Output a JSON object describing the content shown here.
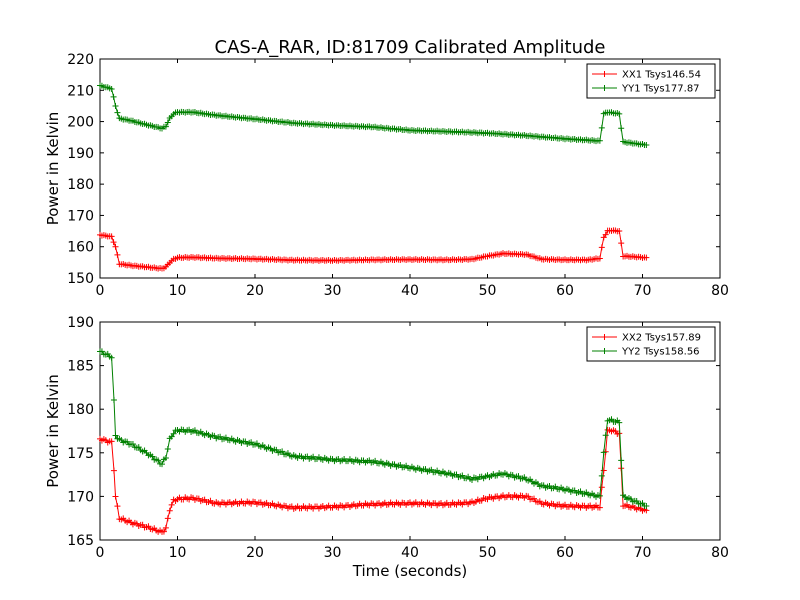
{
  "chart_data": [
    {
      "type": "line",
      "title": "CAS-A_RAR, ID:81709 Calibrated Amplitude",
      "xlabel": "",
      "ylabel": "Power in Kelvin",
      "xlim": [
        0,
        80
      ],
      "ylim": [
        150,
        220
      ],
      "xticks": [
        "0",
        "10",
        "20",
        "30",
        "40",
        "50",
        "60",
        "70",
        "80"
      ],
      "yticks": [
        "150",
        "160",
        "170",
        "180",
        "190",
        "200",
        "210",
        "220"
      ],
      "legend_position": "top-right",
      "marker": "+",
      "series": [
        {
          "name": "XX1 Tsys146.54",
          "color": "#ff0000",
          "x": [
            0.0,
            1.5,
            2.0,
            2.5,
            4.0,
            6.0,
            8.0,
            8.5,
            9.0,
            9.5,
            10.0,
            12.0,
            15.0,
            20.0,
            25.0,
            30.0,
            35.0,
            40.0,
            45.0,
            48.0,
            50.0,
            52.0,
            55.0,
            57.0,
            60.0,
            63.0,
            64.5,
            65.0,
            65.5,
            66.0,
            67.0,
            67.5,
            70.5
          ],
          "y": [
            163.8,
            163.2,
            160.0,
            154.5,
            154.0,
            153.5,
            153.0,
            153.5,
            155.0,
            156.0,
            156.5,
            156.6,
            156.3,
            156.1,
            155.7,
            155.6,
            155.8,
            155.9,
            155.8,
            156.0,
            157.0,
            157.8,
            157.5,
            156.0,
            155.8,
            155.8,
            156.3,
            163.0,
            165.0,
            165.2,
            165.0,
            157.0,
            156.5
          ]
        },
        {
          "name": "YY1 Tsys177.87",
          "color": "#008000",
          "x": [
            0.0,
            1.5,
            2.0,
            2.5,
            4.0,
            6.0,
            8.0,
            8.5,
            9.0,
            9.5,
            10.0,
            12.0,
            15.0,
            20.0,
            25.0,
            30.0,
            35.0,
            40.0,
            45.0,
            50.0,
            55.0,
            60.0,
            64.5,
            65.0,
            65.5,
            67.0,
            67.5,
            70.5
          ],
          "y": [
            211.5,
            210.5,
            205.0,
            201.0,
            200.3,
            199.0,
            197.8,
            198.5,
            201.0,
            202.5,
            203.0,
            203.0,
            202.0,
            200.8,
            199.5,
            198.8,
            198.3,
            197.2,
            196.8,
            196.3,
            195.5,
            194.5,
            193.8,
            202.5,
            203.0,
            202.5,
            193.5,
            192.5
          ]
        }
      ]
    },
    {
      "type": "line",
      "title": "",
      "xlabel": "Time (seconds)",
      "ylabel": "Power in Kelvin",
      "xlim": [
        0,
        80
      ],
      "ylim": [
        165,
        190
      ],
      "xticks": [
        "0",
        "10",
        "20",
        "30",
        "40",
        "50",
        "60",
        "70",
        "80"
      ],
      "yticks": [
        "165",
        "170",
        "175",
        "180",
        "185",
        "190"
      ],
      "legend_position": "top-right",
      "marker": "+",
      "series": [
        {
          "name": "XX2 Tsys157.89",
          "color": "#ff0000",
          "x": [
            0.0,
            1.5,
            1.8,
            2.0,
            2.5,
            4.0,
            6.0,
            8.0,
            8.5,
            9.0,
            9.5,
            10.0,
            12.0,
            15.0,
            20.0,
            25.0,
            30.0,
            35.0,
            40.0,
            45.0,
            48.0,
            50.0,
            52.0,
            55.0,
            57.0,
            60.0,
            64.5,
            65.0,
            65.5,
            66.0,
            67.0,
            67.5,
            70.5
          ],
          "y": [
            176.6,
            176.2,
            173.0,
            170.0,
            167.5,
            167.0,
            166.5,
            165.9,
            166.3,
            168.5,
            169.5,
            169.7,
            169.8,
            169.2,
            169.3,
            168.7,
            168.8,
            169.1,
            169.2,
            169.1,
            169.3,
            169.8,
            170.0,
            170.0,
            169.2,
            168.9,
            168.8,
            173.0,
            177.5,
            177.6,
            177.2,
            169.0,
            168.4
          ]
        },
        {
          "name": "YY2 Tsys158.56",
          "color": "#008000",
          "x": [
            0.0,
            1.5,
            1.8,
            2.0,
            2.5,
            4.0,
            6.0,
            8.0,
            8.5,
            9.0,
            9.5,
            10.0,
            12.0,
            15.0,
            20.0,
            25.0,
            30.0,
            35.0,
            40.0,
            45.0,
            48.0,
            50.0,
            52.0,
            55.0,
            57.0,
            60.0,
            64.5,
            65.0,
            65.5,
            66.0,
            67.0,
            67.5,
            70.5
          ],
          "y": [
            186.6,
            186.0,
            181.0,
            177.0,
            176.5,
            176.0,
            175.0,
            173.7,
            174.5,
            176.5,
            177.3,
            177.6,
            177.5,
            176.8,
            176.0,
            174.6,
            174.2,
            174.0,
            173.3,
            172.6,
            172.0,
            172.3,
            172.6,
            172.0,
            171.2,
            170.8,
            170.0,
            175.0,
            178.8,
            178.7,
            178.5,
            170.0,
            168.9
          ]
        }
      ]
    }
  ]
}
